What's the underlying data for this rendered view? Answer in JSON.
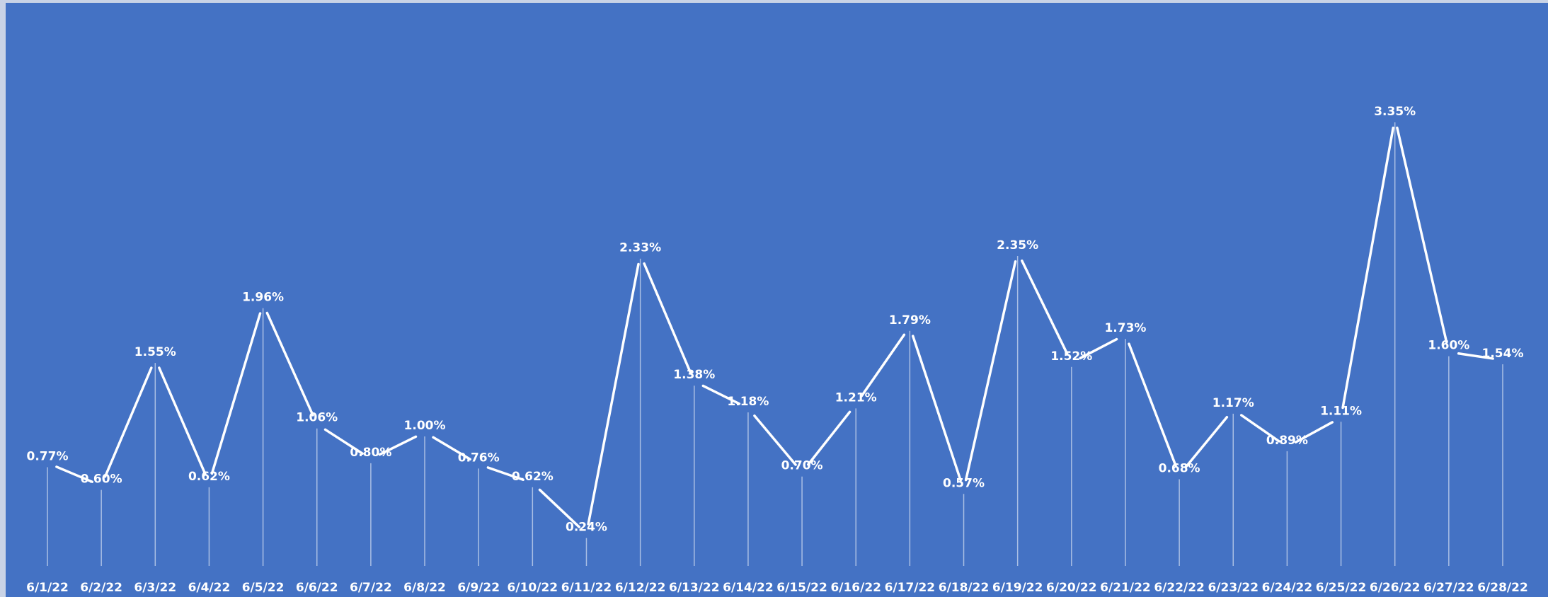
{
  "chart_data": {
    "type": "line",
    "title": "",
    "xlabel": "",
    "ylabel": "",
    "categories": [
      "6/1/22",
      "6/2/22",
      "6/3/22",
      "6/4/22",
      "6/5/22",
      "6/6/22",
      "6/7/22",
      "6/8/22",
      "6/9/22",
      "6/10/22",
      "6/11/22",
      "6/12/22",
      "6/13/22",
      "6/14/22",
      "6/15/22",
      "6/16/22",
      "6/17/22",
      "6/18/22",
      "6/19/22",
      "6/20/22",
      "6/21/22",
      "6/22/22",
      "6/23/22",
      "6/24/22",
      "6/25/22",
      "6/26/22",
      "6/27/22",
      "6/28/22"
    ],
    "series": [
      {
        "values": [
          0.77,
          0.6,
          1.55,
          0.62,
          1.96,
          1.06,
          0.8,
          1.0,
          0.76,
          0.62,
          0.24,
          2.33,
          1.38,
          1.18,
          0.7,
          1.21,
          1.79,
          0.57,
          2.35,
          1.52,
          1.73,
          0.68,
          1.17,
          0.89,
          1.11,
          3.35,
          1.6,
          1.54
        ],
        "labels": [
          "0.77%",
          "0.60%",
          "1.55%",
          "0.62%",
          "1.96%",
          "1.06%",
          "0.80%",
          "1.00%",
          "0.76%",
          "0.62%",
          "0.24%",
          "2.33%",
          "1.38%",
          "1.18%",
          "0.70%",
          "1.21%",
          "1.79%",
          "0.57%",
          "2.35%",
          "1.52%",
          "1.73%",
          "0.68%",
          "1.17%",
          "0.89%",
          "1.11%",
          "3.35%",
          "1.60%",
          "1.54%"
        ]
      }
    ],
    "ylim": [
      0,
      3.35
    ],
    "grid": false,
    "legend": "none",
    "drop_lines": true,
    "colors": {
      "background": "#4472c4",
      "line": "#ffffff",
      "text": "#ffffff"
    }
  }
}
